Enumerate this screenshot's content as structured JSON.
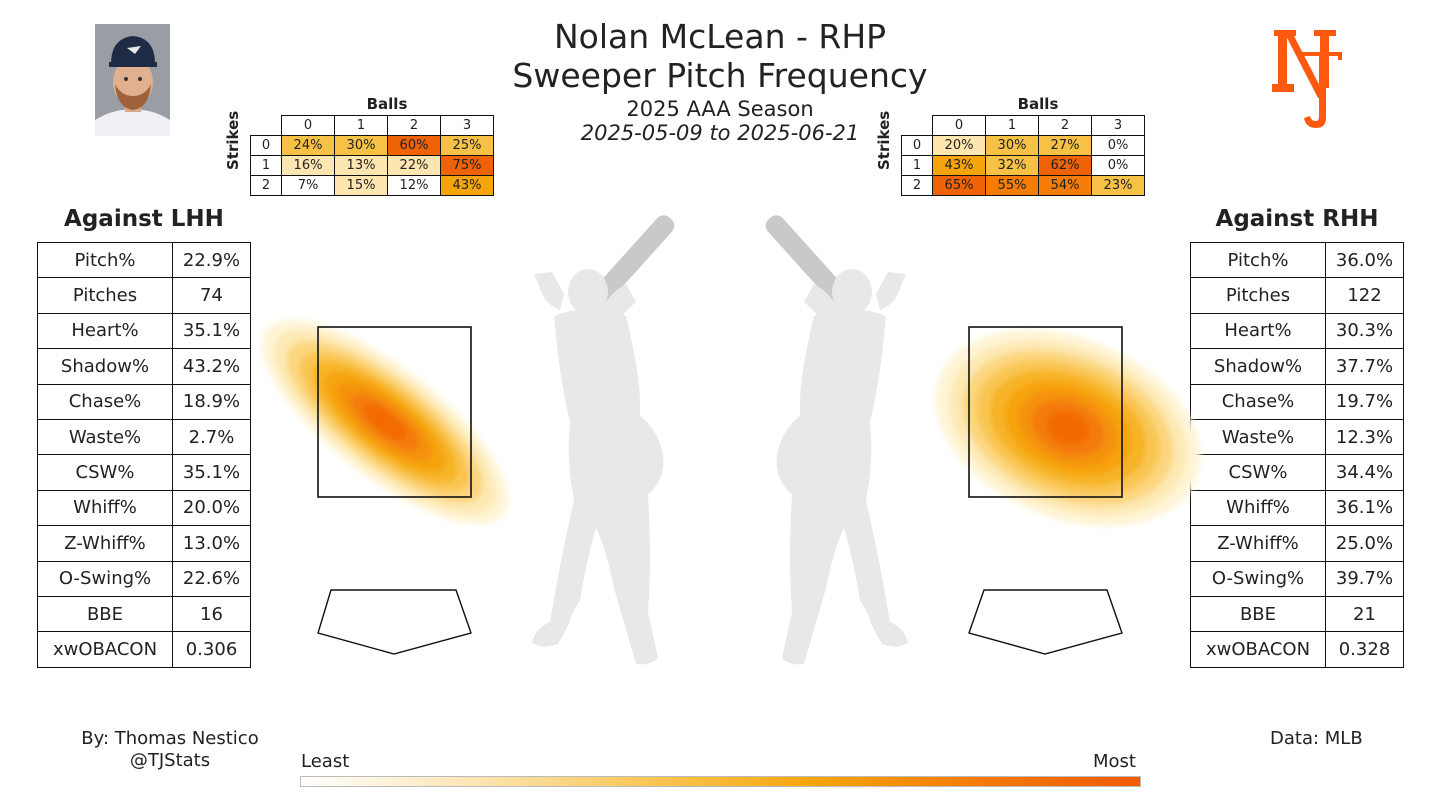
{
  "header": {
    "line1": "Nolan McLean - RHP",
    "line2": "Sweeper Pitch Frequency",
    "line3": "2025 AAA Season",
    "line4": "2025-05-09 to 2025-06-21"
  },
  "colors": {
    "accent": "#FF5910",
    "low": "#fde6b6",
    "mid": "#f7c146",
    "high": "#f47c07"
  },
  "count_grids": {
    "balls_label": "Balls",
    "strikes_label": "Strikes",
    "ball_counts": [
      "0",
      "1",
      "2",
      "3"
    ],
    "strike_counts": [
      "0",
      "1",
      "2"
    ],
    "lhh": [
      [
        "24%",
        "30%",
        "60%",
        "25%"
      ],
      [
        "16%",
        "13%",
        "22%",
        "75%"
      ],
      [
        "7%",
        "15%",
        "12%",
        "43%"
      ]
    ],
    "rhh": [
      [
        "20%",
        "30%",
        "27%",
        "0%"
      ],
      [
        "43%",
        "32%",
        "62%",
        "0%"
      ],
      [
        "65%",
        "55%",
        "54%",
        "23%"
      ]
    ]
  },
  "lhh": {
    "title": "Against LHH",
    "stats": [
      {
        "label": "Pitch%",
        "value": "22.9%"
      },
      {
        "label": "Pitches",
        "value": "74"
      },
      {
        "label": "Heart%",
        "value": "35.1%"
      },
      {
        "label": "Shadow%",
        "value": "43.2%"
      },
      {
        "label": "Chase%",
        "value": "18.9%"
      },
      {
        "label": "Waste%",
        "value": "2.7%"
      },
      {
        "label": "CSW%",
        "value": "35.1%"
      },
      {
        "label": "Whiff%",
        "value": "20.0%"
      },
      {
        "label": "Z-Whiff%",
        "value": "13.0%"
      },
      {
        "label": "O-Swing%",
        "value": "22.6%"
      },
      {
        "label": "BBE",
        "value": "16"
      },
      {
        "label": "xwOBACON",
        "value": "0.306"
      }
    ]
  },
  "rhh": {
    "title": "Against RHH",
    "stats": [
      {
        "label": "Pitch%",
        "value": "36.0%"
      },
      {
        "label": "Pitches",
        "value": "122"
      },
      {
        "label": "Heart%",
        "value": "30.3%"
      },
      {
        "label": "Shadow%",
        "value": "37.7%"
      },
      {
        "label": "Chase%",
        "value": "19.7%"
      },
      {
        "label": "Waste%",
        "value": "12.3%"
      },
      {
        "label": "CSW%",
        "value": "34.4%"
      },
      {
        "label": "Whiff%",
        "value": "36.1%"
      },
      {
        "label": "Z-Whiff%",
        "value": "25.0%"
      },
      {
        "label": "O-Swing%",
        "value": "39.7%"
      },
      {
        "label": "BBE",
        "value": "21"
      },
      {
        "label": "xwOBACON",
        "value": "0.328"
      }
    ]
  },
  "footer": {
    "credit_line1": "By: Thomas Nestico",
    "credit_line2": "@TJStats",
    "source": "Data: MLB",
    "colorbar_min_label": "Least",
    "colorbar_max_label": "Most"
  },
  "chart_data": {
    "type": "heatmap",
    "title": "Sweeper Pitch Frequency",
    "panels": [
      {
        "batter_hand": "LHH",
        "density_peak": {
          "x_in": 0.2,
          "z_ft": 2.75
        },
        "orientation_deg": -38
      },
      {
        "batter_hand": "RHH",
        "density_peak": {
          "x_in": 1.5,
          "z_ft": 2.85
        },
        "orientation_deg": -22
      }
    ],
    "legend": "bottom"
  }
}
